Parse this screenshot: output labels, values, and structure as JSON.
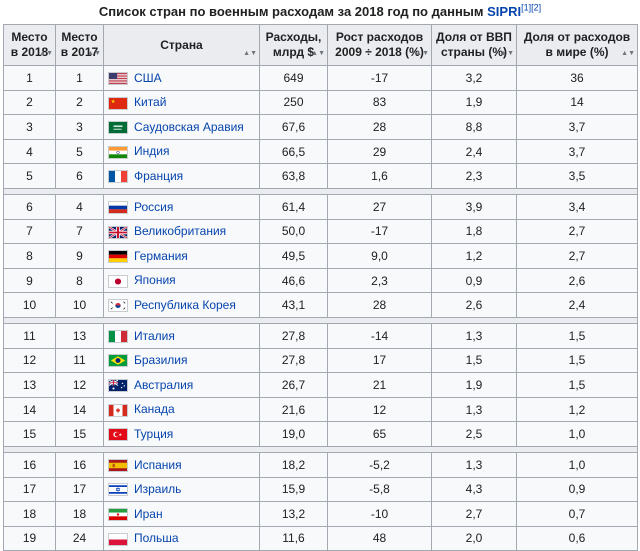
{
  "caption": {
    "text": "Список стран по военным расходам за 2018 год по данным",
    "link": "SIPRI",
    "refs": "[1][2]"
  },
  "headers": {
    "rank2018": "Место в 2018",
    "rank2017": "Место в 2017",
    "country": "Страна",
    "spending": "Расходы, млрд $",
    "growth": "Рост расходов 2009 ÷ 2018 (%)",
    "gdp_share": "Доля от ВВП страны (%)",
    "world_share": "Доля от расходов в мире (%)"
  },
  "rows": [
    {
      "r18": "1",
      "r17": "1",
      "country": "США",
      "flag": "us-flag-icon",
      "spend": "649",
      "growth": "-17",
      "gdp": "3,2",
      "world": "36"
    },
    {
      "r18": "2",
      "r17": "2",
      "country": "Китай",
      "flag": "cn-flag-icon",
      "spend": "250",
      "growth": "83",
      "gdp": "1,9",
      "world": "14"
    },
    {
      "r18": "3",
      "r17": "3",
      "country": "Саудовская Аравия",
      "flag": "sa-flag-icon",
      "spend": "67,6",
      "growth": "28",
      "gdp": "8,8",
      "world": "3,7"
    },
    {
      "r18": "4",
      "r17": "5",
      "country": "Индия",
      "flag": "in-flag-icon",
      "spend": "66,5",
      "growth": "29",
      "gdp": "2,4",
      "world": "3,7"
    },
    {
      "r18": "5",
      "r17": "6",
      "country": "Франция",
      "flag": "fr-flag-icon",
      "spend": "63,8",
      "growth": "1,6",
      "gdp": "2,3",
      "world": "3,5"
    },
    {
      "r18": "6",
      "r17": "4",
      "country": "Россия",
      "flag": "ru-flag-icon",
      "spend": "61,4",
      "growth": "27",
      "gdp": "3,9",
      "world": "3,4"
    },
    {
      "r18": "7",
      "r17": "7",
      "country": "Великобритания",
      "flag": "gb-flag-icon",
      "spend": "50,0",
      "growth": "-17",
      "gdp": "1,8",
      "world": "2,7"
    },
    {
      "r18": "8",
      "r17": "9",
      "country": "Германия",
      "flag": "de-flag-icon",
      "spend": "49,5",
      "growth": "9,0",
      "gdp": "1,2",
      "world": "2,7"
    },
    {
      "r18": "9",
      "r17": "8",
      "country": "Япония",
      "flag": "jp-flag-icon",
      "spend": "46,6",
      "growth": "2,3",
      "gdp": "0,9",
      "world": "2,6"
    },
    {
      "r18": "10",
      "r17": "10",
      "country": "Республика Корея",
      "flag": "kr-flag-icon",
      "spend": "43,1",
      "growth": "28",
      "gdp": "2,6",
      "world": "2,4"
    },
    {
      "r18": "11",
      "r17": "13",
      "country": "Италия",
      "flag": "it-flag-icon",
      "spend": "27,8",
      "growth": "-14",
      "gdp": "1,3",
      "world": "1,5"
    },
    {
      "r18": "12",
      "r17": "11",
      "country": "Бразилия",
      "flag": "br-flag-icon",
      "spend": "27,8",
      "growth": "17",
      "gdp": "1,5",
      "world": "1,5"
    },
    {
      "r18": "13",
      "r17": "12",
      "country": "Австралия",
      "flag": "au-flag-icon",
      "spend": "26,7",
      "growth": "21",
      "gdp": "1,9",
      "world": "1,5"
    },
    {
      "r18": "14",
      "r17": "14",
      "country": "Канада",
      "flag": "ca-flag-icon",
      "spend": "21,6",
      "growth": "12",
      "gdp": "1,3",
      "world": "1,2"
    },
    {
      "r18": "15",
      "r17": "15",
      "country": "Турция",
      "flag": "tr-flag-icon",
      "spend": "19,0",
      "growth": "65",
      "gdp": "2,5",
      "world": "1,0"
    },
    {
      "r18": "16",
      "r17": "16",
      "country": "Испания",
      "flag": "es-flag-icon",
      "spend": "18,2",
      "growth": "-5,2",
      "gdp": "1,3",
      "world": "1,0"
    },
    {
      "r18": "17",
      "r17": "17",
      "country": "Израиль",
      "flag": "il-flag-icon",
      "spend": "15,9",
      "growth": "-5,8",
      "gdp": "4,3",
      "world": "0,9"
    },
    {
      "r18": "18",
      "r17": "18",
      "country": "Иран",
      "flag": "ir-flag-icon",
      "spend": "13,2",
      "growth": "-10",
      "gdp": "2,7",
      "world": "0,7"
    },
    {
      "r18": "19",
      "r17": "24",
      "country": "Польша",
      "flag": "pl-flag-icon",
      "spend": "11,6",
      "growth": "48",
      "gdp": "2,0",
      "world": "0,6"
    }
  ],
  "group_breaks_after": [
    5,
    10,
    15
  ],
  "colors": {
    "link": "#0645ad",
    "header_bg": "#eaecf0",
    "cell_bg": "#f8f9fa",
    "border": "#a2a9b1"
  }
}
